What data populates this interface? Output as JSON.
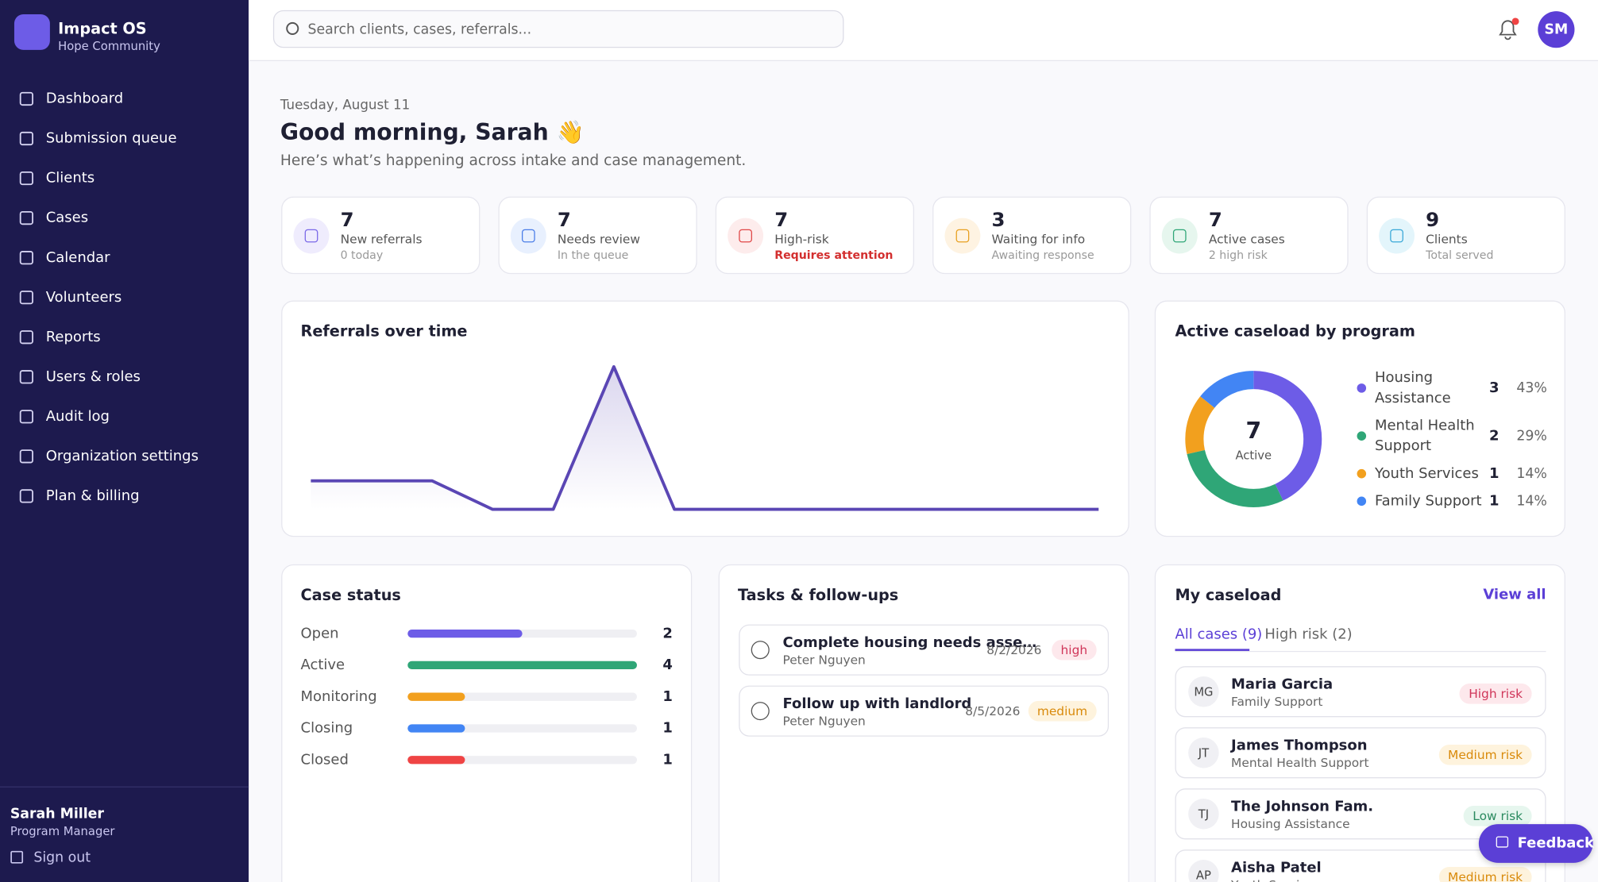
{
  "sidebar": {
    "brand": "Impact OS",
    "org": "Hope Community",
    "nav": [
      "Dashboard",
      "Submission queue",
      "Clients",
      "Cases",
      "Calendar",
      "Volunteers",
      "Reports",
      "Users & roles",
      "Audit log",
      "Organization settings",
      "Plan & billing"
    ],
    "user": {
      "name": "Sarah Miller",
      "role": "Program Manager"
    },
    "sign_out": "Sign out"
  },
  "topbar": {
    "search_placeholder": "Search clients, cases, referrals...",
    "avatar": "SM"
  },
  "header": {
    "date": "Tuesday, August 11",
    "greeting": "Good morning, Sarah 👋",
    "subtitle": "Here’s what’s happening across intake and case management."
  },
  "stats": [
    {
      "value": 7,
      "label": "New referrals",
      "note": "0 today"
    },
    {
      "value": 7,
      "label": "Needs review",
      "note": "In the queue"
    },
    {
      "value": 7,
      "label": "High-risk",
      "note": "Requires attention"
    },
    {
      "value": 3,
      "label": "Waiting for info",
      "note": "Awaiting response"
    },
    {
      "value": 7,
      "label": "Active cases",
      "note": "2 high risk"
    },
    {
      "value": 9,
      "label": "Clients",
      "note": "Total served"
    }
  ],
  "referrals_chart": {
    "type": "line",
    "title": "Referrals over time",
    "values": [
      1,
      1,
      1,
      0,
      0,
      5,
      0,
      0,
      0,
      0,
      0,
      0,
      0,
      0
    ],
    "color": "#5a46b4"
  },
  "caseload_chart": {
    "type": "pie",
    "title": "Active caseload by program",
    "center_value": 7,
    "center_label": "Active",
    "categories": [
      "Housing Assistance",
      "Mental Health Support",
      "Youth Services",
      "Family Support"
    ],
    "values": [
      3,
      2,
      1,
      1
    ],
    "percent_labels": [
      "43%",
      "29%",
      "14%",
      "14%"
    ],
    "colors": [
      "#6d5ce7",
      "#2fa677",
      "#f2a01e",
      "#4285f4"
    ]
  },
  "case_status": {
    "type": "bar",
    "title": "Case status",
    "categories": [
      "Open",
      "Active",
      "Monitoring",
      "Closing",
      "Closed"
    ],
    "values": [
      2,
      4,
      1,
      1,
      1
    ],
    "colors": [
      "#6d5ce7",
      "#2fa677",
      "#f2a01e",
      "#4285f4",
      "#ef4444"
    ]
  },
  "tasks": {
    "title": "Tasks & follow-ups",
    "items": [
      {
        "title": "Complete housing needs asse…",
        "person": "Peter Nguyen",
        "date": "8/2/2026",
        "priority": "high"
      },
      {
        "title": "Follow up with landlord",
        "person": "Peter Nguyen",
        "date": "8/5/2026",
        "priority": "medium"
      }
    ]
  },
  "caseload": {
    "title": "My caseload",
    "view_all": "View all",
    "tabs": [
      "All cases (9)",
      "High risk (2)"
    ],
    "clients": [
      {
        "initials": "MG",
        "name": "Maria Garcia",
        "program": "Family Support",
        "risk": "High risk"
      },
      {
        "initials": "JT",
        "name": "James Thompson",
        "program": "Mental Health Support",
        "risk": "Medium risk"
      },
      {
        "initials": "TJ",
        "name": "The Johnson Fam.",
        "program": "Housing Assistance",
        "risk": "Low risk"
      },
      {
        "initials": "AP",
        "name": "Aisha Patel",
        "program": "Youth Services",
        "risk": "Medium risk"
      }
    ]
  },
  "feedback": "Feedback"
}
